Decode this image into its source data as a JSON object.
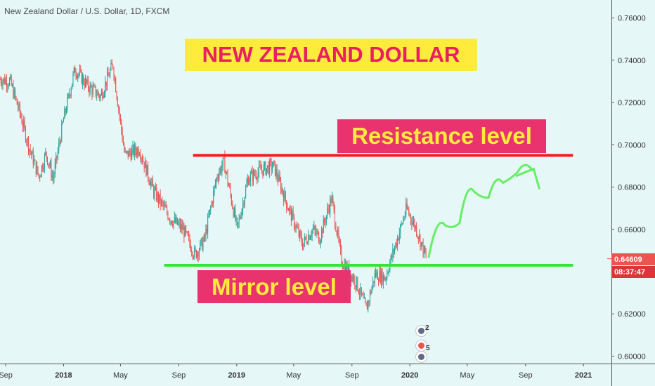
{
  "header": {
    "symbol_title": "New Zealand Dollar / U.S. Dollar, 1D, FXCM"
  },
  "annotations": {
    "headline": "NEW ZEALAND DOLLAR",
    "resistance_label": "Resistance level",
    "mirror_label": "Mirror level"
  },
  "price_badges": {
    "current_price": "0.64609",
    "countdown": "08:37:47"
  },
  "events": [
    {
      "icon": "flag-event-icon",
      "count": "2"
    },
    {
      "icon": "flag-event-icon",
      "count": "5"
    }
  ],
  "colors": {
    "background": "#e6f7f8",
    "candle_up": "#26a69a",
    "candle_down": "#ef5350",
    "resistance_line": "#ff1a1a",
    "mirror_line": "#33e633",
    "forecast_arrow": "#66ee66",
    "headline_bg": "#ffeb3b",
    "headline_text": "#e91e63",
    "label_bg": "#e8336f",
    "label_text": "#ffeb3b"
  },
  "chart_data": {
    "type": "candlestick",
    "title": "New Zealand Dollar / U.S. Dollar, 1D, FXCM",
    "x_ticks": [
      "Sep",
      "2018",
      "May",
      "Sep",
      "2019",
      "May",
      "Sep",
      "2020",
      "May",
      "Sep",
      "2021"
    ],
    "y_ticks": [
      "0.76000",
      "0.74000",
      "0.72000",
      "0.70000",
      "0.68000",
      "0.66000",
      "0.64000",
      "0.62000",
      "0.60000"
    ],
    "ylim": [
      0.5965,
      0.7685
    ],
    "xlim": [
      "2017-08-20",
      "2021-03-01"
    ],
    "price_path": [
      {
        "date": "2017-08-20",
        "close": 0.731
      },
      {
        "date": "2017-09-10",
        "close": 0.73
      },
      {
        "date": "2017-10-01",
        "close": 0.715
      },
      {
        "date": "2017-10-20",
        "close": 0.699
      },
      {
        "date": "2017-11-10",
        "close": 0.685
      },
      {
        "date": "2017-11-25",
        "close": 0.696
      },
      {
        "date": "2017-12-10",
        "close": 0.684
      },
      {
        "date": "2018-01-01",
        "close": 0.712
      },
      {
        "date": "2018-01-25",
        "close": 0.736
      },
      {
        "date": "2018-02-20",
        "close": 0.728
      },
      {
        "date": "2018-03-20",
        "close": 0.723
      },
      {
        "date": "2018-04-15",
        "close": 0.738
      },
      {
        "date": "2018-05-10",
        "close": 0.695
      },
      {
        "date": "2018-06-10",
        "close": 0.698
      },
      {
        "date": "2018-07-10",
        "close": 0.678
      },
      {
        "date": "2018-08-15",
        "close": 0.665
      },
      {
        "date": "2018-09-10",
        "close": 0.66
      },
      {
        "date": "2018-10-05",
        "close": 0.648
      },
      {
        "date": "2018-10-25",
        "close": 0.655
      },
      {
        "date": "2018-11-20",
        "close": 0.685
      },
      {
        "date": "2018-12-05",
        "close": 0.692
      },
      {
        "date": "2019-01-02",
        "close": 0.66
      },
      {
        "date": "2019-01-25",
        "close": 0.684
      },
      {
        "date": "2019-02-20",
        "close": 0.688
      },
      {
        "date": "2019-03-20",
        "close": 0.69
      },
      {
        "date": "2019-04-20",
        "close": 0.67
      },
      {
        "date": "2019-05-20",
        "close": 0.653
      },
      {
        "date": "2019-06-10",
        "close": 0.66
      },
      {
        "date": "2019-06-25",
        "close": 0.656
      },
      {
        "date": "2019-07-20",
        "close": 0.675
      },
      {
        "date": "2019-08-10",
        "close": 0.645
      },
      {
        "date": "2019-09-10",
        "close": 0.635
      },
      {
        "date": "2019-10-01",
        "close": 0.622
      },
      {
        "date": "2019-10-20",
        "close": 0.639
      },
      {
        "date": "2019-11-10",
        "close": 0.637
      },
      {
        "date": "2019-12-05",
        "close": 0.655
      },
      {
        "date": "2019-12-25",
        "close": 0.67
      },
      {
        "date": "2020-01-15",
        "close": 0.66
      },
      {
        "date": "2020-02-05",
        "close": 0.646
      }
    ],
    "resistance_level": 0.695,
    "resistance_range": [
      "2018-10-01",
      "2020-12-10"
    ],
    "mirror_level": 0.643,
    "mirror_range": [
      "2018-08-01",
      "2020-12-10"
    ],
    "forecast_path": [
      {
        "date": "2020-02-10",
        "value": 0.647
      },
      {
        "date": "2020-03-15",
        "value": 0.662
      },
      {
        "date": "2020-04-15",
        "value": 0.663
      },
      {
        "date": "2020-05-15",
        "value": 0.678
      },
      {
        "date": "2020-06-15",
        "value": 0.675
      },
      {
        "date": "2020-07-15",
        "value": 0.682
      },
      {
        "date": "2020-08-15",
        "value": 0.687
      },
      {
        "date": "2020-09-15",
        "value": 0.688
      }
    ],
    "grid": false
  }
}
